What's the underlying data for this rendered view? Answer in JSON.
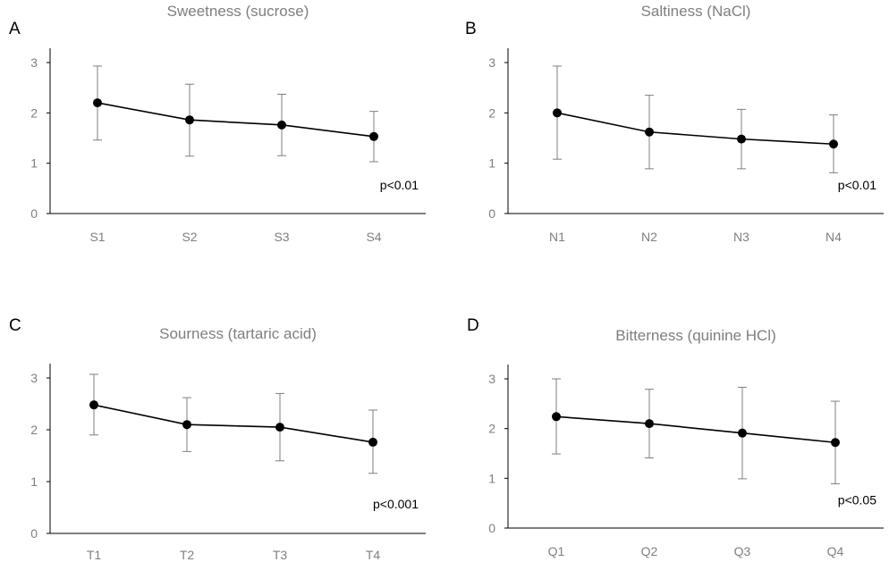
{
  "colors": {
    "series": "#000000",
    "error_bars": "#7f7f7f",
    "title_text": "#7f7f7f",
    "tick_text": "#7f7f7f",
    "axis": "#000000"
  },
  "chart_data": [
    {
      "type": "line",
      "panel_label": "A",
      "title": "Sweetness (sucrose)",
      "categories": [
        "S1",
        "S2",
        "S3",
        "S4"
      ],
      "values": [
        2.2,
        1.86,
        1.76,
        1.53
      ],
      "error_low": [
        1.46,
        1.14,
        1.15,
        1.03
      ],
      "error_high": [
        2.93,
        2.57,
        2.37,
        2.03
      ],
      "ylim": [
        0,
        3
      ],
      "yticks": [
        "0",
        "1",
        "2",
        "3"
      ],
      "annotation": "p<0.01",
      "grid": false
    },
    {
      "type": "line",
      "panel_label": "B",
      "title": "Saltiness (NaCl)",
      "categories": [
        "N1",
        "N2",
        "N3",
        "N4"
      ],
      "values": [
        2.0,
        1.62,
        1.48,
        1.38
      ],
      "error_low": [
        1.08,
        0.89,
        0.89,
        0.81
      ],
      "error_high": [
        2.93,
        2.35,
        2.07,
        1.96
      ],
      "ylim": [
        0,
        3
      ],
      "yticks": [
        "0",
        "1",
        "2",
        "3"
      ],
      "annotation": "p<0.01",
      "grid": false
    },
    {
      "type": "line",
      "panel_label": "C",
      "title": "Sourness (tartaric acid)",
      "categories": [
        "T1",
        "T2",
        "T3",
        "T4"
      ],
      "values": [
        2.48,
        2.1,
        2.05,
        1.76
      ],
      "error_low": [
        1.9,
        1.58,
        1.4,
        1.16
      ],
      "error_high": [
        3.07,
        2.62,
        2.7,
        2.38
      ],
      "ylim": [
        0,
        3
      ],
      "yticks": [
        "0",
        "1",
        "2",
        "3"
      ],
      "annotation": "p<0.001",
      "grid": false
    },
    {
      "type": "line",
      "panel_label": "D",
      "title": "Bitterness (quinine HCl)",
      "categories": [
        "Q1",
        "Q2",
        "Q3",
        "Q4"
      ],
      "values": [
        2.24,
        2.1,
        1.91,
        1.72
      ],
      "error_low": [
        1.49,
        1.41,
        0.99,
        0.89
      ],
      "error_high": [
        3.0,
        2.79,
        2.83,
        2.55
      ],
      "ylim": [
        0,
        3
      ],
      "yticks": [
        "0",
        "1",
        "2",
        "3"
      ],
      "annotation": "p<0.05",
      "grid": false
    }
  ]
}
